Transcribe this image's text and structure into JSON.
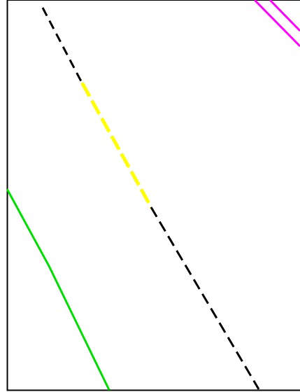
{
  "map": {
    "background": "#ffffff",
    "border_color": "#000000",
    "features": [
      {
        "name": "dashed-route",
        "color": "#000000",
        "style": "dashed"
      },
      {
        "name": "highlighted-route-segment",
        "color": "#ffff00",
        "style": "dashed"
      },
      {
        "name": "green-line",
        "color": "#00dd00",
        "style": "solid"
      },
      {
        "name": "magenta-double-line",
        "color": "#ff00ff",
        "style": "solid"
      }
    ]
  }
}
